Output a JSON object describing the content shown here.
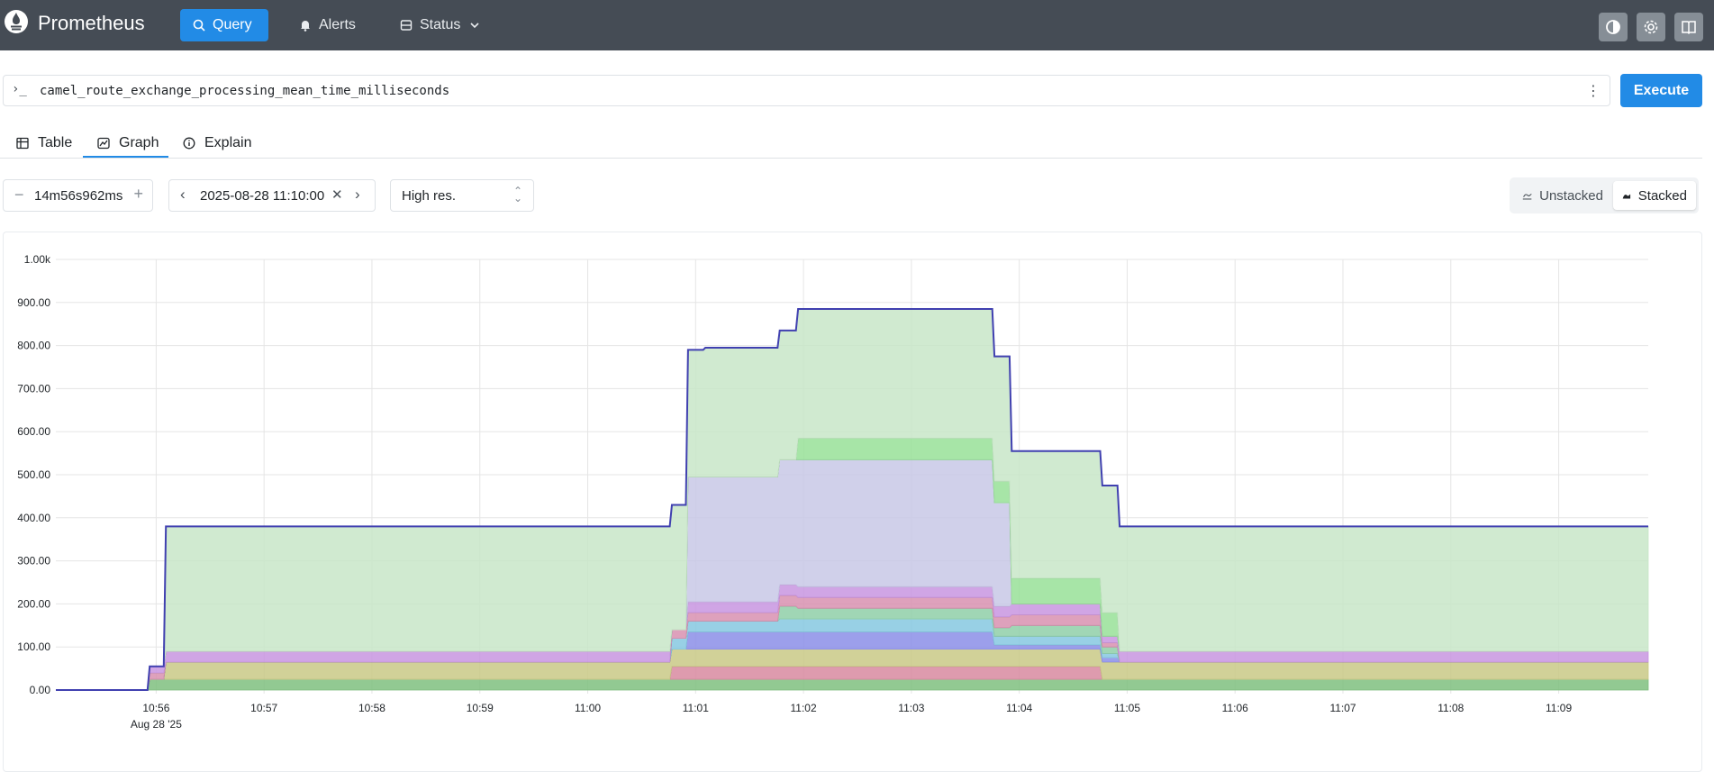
{
  "app": {
    "title": "Prometheus"
  },
  "nav": {
    "query": "Query",
    "alerts": "Alerts",
    "status": "Status"
  },
  "query": {
    "prompt": "›_",
    "expression": "camel_route_exchange_processing_mean_time_milliseconds",
    "execute": "Execute"
  },
  "tabs": {
    "table": "Table",
    "graph": "Graph",
    "explain": "Explain",
    "active": "Graph"
  },
  "controls": {
    "range": "14m56s962ms",
    "end_time": "2025-08-28 11:10:00",
    "resolution": "High res.",
    "unstacked": "Unstacked",
    "stacked": "Stacked",
    "selected_mode": "Stacked"
  },
  "colors": {
    "header_bg": "#454c55",
    "accent": "#228be6"
  },
  "chart_data": {
    "type": "area",
    "stacked": true,
    "x_unit": "time",
    "x_ticks": [
      "10:56",
      "10:57",
      "10:58",
      "10:59",
      "11:00",
      "11:01",
      "11:02",
      "11:03",
      "11:04",
      "11:05",
      "11:06",
      "11:07",
      "11:08",
      "11:09"
    ],
    "x_subtick": "Aug 28 '25",
    "y_ticks": [
      "0.00",
      "100.00",
      "200.00",
      "300.00",
      "400.00",
      "500.00",
      "600.00",
      "700.00",
      "800.00",
      "900.00",
      "1.00k"
    ],
    "ylim": [
      0,
      1000
    ],
    "xlim_minutes": [
      -0.93,
      13.83
    ],
    "grid": true,
    "x": [
      -0.93,
      -0.08,
      -0.06,
      0.07,
      0.09,
      4.76,
      4.78,
      4.91,
      4.93,
      5.07,
      5.09,
      5.76,
      5.78,
      5.93,
      5.95,
      7.75,
      7.77,
      7.91,
      7.93,
      8.75,
      8.77,
      8.91,
      8.93,
      13.83
    ],
    "series": [
      {
        "color": "#7fbf7f",
        "values": [
          0,
          0,
          25,
          25,
          25,
          25,
          25,
          25,
          25,
          25,
          25,
          25,
          25,
          25,
          25,
          25,
          25,
          25,
          25,
          25,
          25,
          25,
          25,
          25
        ]
      },
      {
        "color": "#d88aa0",
        "values": [
          0,
          0,
          0,
          0,
          0,
          0,
          30,
          30,
          30,
          30,
          30,
          30,
          30,
          30,
          30,
          30,
          30,
          30,
          30,
          30,
          0,
          0,
          0,
          0
        ]
      },
      {
        "color": "#c9c986",
        "values": [
          0,
          0,
          0,
          0,
          40,
          40,
          40,
          40,
          40,
          40,
          40,
          40,
          40,
          40,
          40,
          40,
          40,
          40,
          40,
          40,
          40,
          40,
          40,
          40
        ]
      },
      {
        "color": "#8b8ee8",
        "values": [
          0,
          0,
          0,
          0,
          0,
          0,
          0,
          0,
          40,
          40,
          40,
          40,
          40,
          40,
          40,
          40,
          10,
          10,
          10,
          10,
          10,
          10,
          0,
          0
        ]
      },
      {
        "color": "#86c8e0",
        "values": [
          0,
          0,
          0,
          0,
          0,
          0,
          25,
          25,
          25,
          25,
          25,
          25,
          30,
          30,
          30,
          30,
          20,
          20,
          20,
          20,
          10,
          10,
          0,
          0
        ]
      },
      {
        "color": "#8fcfa8",
        "values": [
          0,
          0,
          0,
          0,
          0,
          0,
          0,
          0,
          0,
          0,
          0,
          0,
          30,
          30,
          25,
          25,
          20,
          20,
          25,
          25,
          15,
          15,
          0,
          0
        ]
      },
      {
        "color": "#d890b0",
        "values": [
          0,
          0,
          15,
          15,
          0,
          0,
          20,
          20,
          20,
          20,
          20,
          20,
          25,
          25,
          25,
          25,
          25,
          25,
          25,
          25,
          10,
          10,
          0,
          0
        ]
      },
      {
        "color": "#c895e0",
        "values": [
          0,
          0,
          15,
          15,
          25,
          25,
          0,
          0,
          25,
          25,
          25,
          25,
          25,
          25,
          25,
          25,
          25,
          25,
          25,
          25,
          15,
          15,
          25,
          25
        ]
      },
      {
        "color": "#c8c8e6",
        "values": [
          0,
          0,
          0,
          0,
          0,
          0,
          0,
          0,
          290,
          290,
          290,
          290,
          290,
          290,
          295,
          295,
          240,
          240,
          0,
          0,
          0,
          0,
          0,
          0
        ]
      },
      {
        "color": "#98e098",
        "values": [
          0,
          0,
          0,
          0,
          0,
          0,
          0,
          0,
          0,
          0,
          0,
          0,
          0,
          0,
          50,
          50,
          50,
          50,
          60,
          60,
          55,
          55,
          0,
          0
        ]
      },
      {
        "color": "#c8e6c8",
        "values": [
          0,
          0,
          0,
          0,
          290,
          290,
          290,
          290,
          295,
          295,
          300,
          300,
          300,
          300,
          300,
          300,
          290,
          290,
          295,
          295,
          295,
          295,
          290,
          290
        ]
      }
    ],
    "total_line": {
      "color": "#4040b0"
    }
  }
}
